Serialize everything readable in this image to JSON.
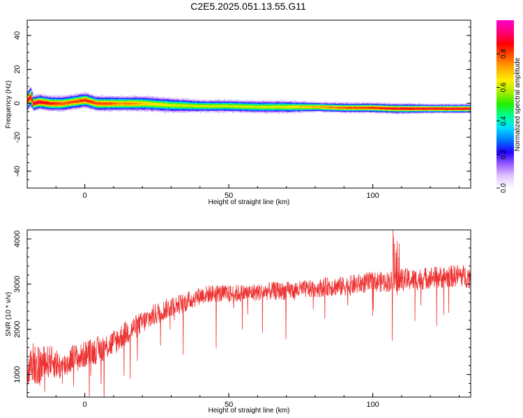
{
  "chart_data": [
    {
      "type": "heatmap",
      "title": "C2E5.2025.051.13.55.G11",
      "xlabel": "Height of straight line (km)",
      "ylabel": "Frequency (Hz)",
      "xlim": [
        -20,
        134
      ],
      "ylim": [
        -50,
        49
      ],
      "xticks": [
        0,
        50,
        100
      ],
      "yticks": [
        -40,
        -20,
        0,
        20,
        40
      ],
      "colorbar": {
        "label": "Normalized spectral amplitude",
        "ticks": [
          0.0,
          0.2,
          0.4,
          0.6,
          0.8
        ],
        "range": [
          0,
          1
        ],
        "colors": [
          "#ffffff",
          "#dfc6ff",
          "#9b5bff",
          "#2200ff",
          "#0077ff",
          "#00ddff",
          "#00ff99",
          "#22ee00",
          "#aaee00",
          "#ffee00",
          "#ffaa00",
          "#ff5500",
          "#ff0000",
          "#ff0077",
          "#ff00cc"
        ]
      },
      "ridge": {
        "height_km": [
          -20,
          -19,
          -18,
          -16,
          -12,
          -8,
          -4,
          0,
          4,
          8,
          12,
          16,
          20,
          25,
          30,
          40,
          50,
          60,
          70,
          80,
          90,
          100,
          107,
          110,
          120,
          134
        ],
        "frequency_hz": [
          2,
          4,
          0,
          1,
          0,
          0,
          1,
          2,
          0,
          0,
          0,
          0,
          0,
          -0.5,
          -1,
          -1.5,
          -1.5,
          -2,
          -2,
          -2,
          -2.5,
          -2.5,
          -3,
          -3,
          -3,
          -3
        ],
        "half_width_hz": [
          4,
          4,
          3,
          3,
          3,
          3,
          3,
          3,
          3,
          3,
          3,
          3,
          3,
          3,
          3,
          2.5,
          2.5,
          2.5,
          2.5,
          2,
          2,
          2,
          2,
          2,
          1.8,
          1.8
        ],
        "peak_amplitude": [
          0.9,
          0.9,
          0.9,
          0.9,
          0.85,
          0.8,
          0.8,
          0.85,
          0.8,
          0.8,
          0.75,
          0.75,
          0.7,
          0.65,
          0.62,
          0.62,
          0.62,
          0.62,
          0.65,
          0.72,
          0.8,
          0.85,
          0.88,
          0.9,
          0.9,
          0.9
        ]
      }
    },
    {
      "type": "line",
      "xlabel": "Height of straight line (km)",
      "ylabel": "SNR (10 * v/v)",
      "xlim": [
        -20,
        134
      ],
      "ylim": [
        500,
        4200
      ],
      "xticks": [
        0,
        50,
        100
      ],
      "yticks": [
        1000,
        2000,
        3000,
        4000
      ],
      "series": [
        {
          "color": "#ee3333",
          "x": [
            -20,
            -18,
            -16,
            -14,
            -12,
            -10,
            -8,
            -6,
            -4,
            -2,
            0,
            5,
            10,
            15,
            20,
            25,
            30,
            35,
            40,
            45,
            50,
            55,
            60,
            65,
            70,
            75,
            80,
            85,
            90,
            95,
            100,
            105,
            110,
            115,
            120,
            125,
            130,
            134
          ],
          "y": [
            1050,
            1300,
            1150,
            1250,
            1300,
            1250,
            1150,
            1250,
            1400,
            1350,
            1450,
            1550,
            1700,
            1950,
            2150,
            2350,
            2500,
            2600,
            2750,
            2800,
            2780,
            2800,
            2820,
            2850,
            2850,
            2880,
            2900,
            2950,
            2950,
            3000,
            3050,
            3050,
            3100,
            3100,
            3150,
            3150,
            3200,
            3150
          ],
          "noise": [
            400,
            500,
            450,
            400,
            350,
            350,
            300,
            300,
            300,
            300,
            300,
            300,
            300,
            280,
            250,
            250,
            220,
            220,
            200,
            200,
            200,
            200,
            200,
            200,
            200,
            200,
            200,
            220,
            220,
            230,
            230,
            230,
            250,
            250,
            250,
            250,
            250,
            250
          ]
        }
      ]
    }
  ]
}
